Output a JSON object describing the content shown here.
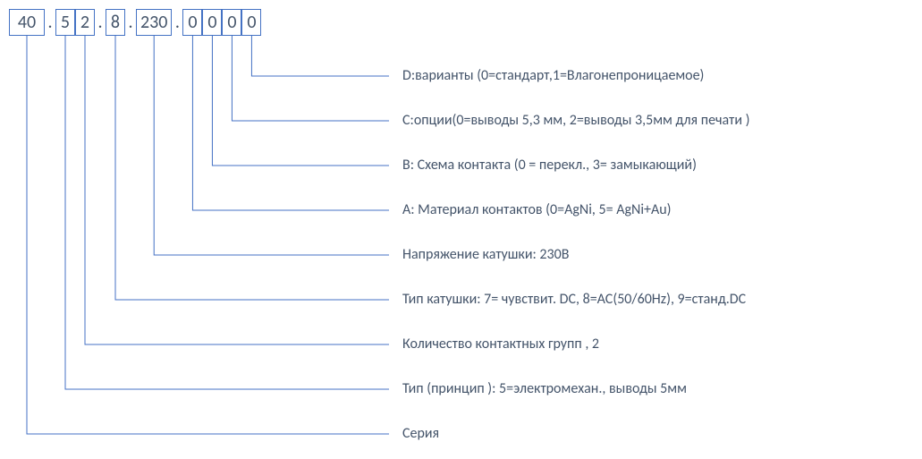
{
  "segments": [
    {
      "text": "40",
      "wide": true
    },
    {
      "dot": true
    },
    {
      "text": "5"
    },
    {
      "text": "2"
    },
    {
      "dot": true
    },
    {
      "text": "8"
    },
    {
      "dot": true
    },
    {
      "text": "230",
      "wide": true
    },
    {
      "dot": true
    },
    {
      "text": "0"
    },
    {
      "text": "0"
    },
    {
      "text": "0"
    },
    {
      "text": "0"
    }
  ],
  "lines": [
    {
      "sourceIdx": 12,
      "labelY": 85,
      "text": "D:варианты (0=стандарт,1=Влагонепроницаемое)"
    },
    {
      "sourceIdx": 11,
      "labelY": 135,
      "text": "C:опции(0=выводы 5,3 мм, 2=выводы 3,5мм для печати )"
    },
    {
      "sourceIdx": 10,
      "labelY": 185,
      "text": "B: Схема контакта (0 = перекл., 3= замыкающий)"
    },
    {
      "sourceIdx": 9,
      "labelY": 235,
      "text": "A: Материал контактов (0=AgNi, 5= AgNi+Au)"
    },
    {
      "sourceIdx": 7,
      "labelY": 285,
      "text": "Напряжение катушки: 230В"
    },
    {
      "sourceIdx": 5,
      "labelY": 335,
      "text": "Тип катушки: 7= чувствит. DC, 8=AC(50/60Hz), 9=станд.DC"
    },
    {
      "sourceIdx": 3,
      "labelY": 385,
      "text": "Количество контактных групп , 2"
    },
    {
      "sourceIdx": 2,
      "labelY": 435,
      "text": "Тип (принцип ): 5=электромехан., выводы 5мм"
    },
    {
      "sourceIdx": 0,
      "labelY": 485,
      "text": "Серия"
    }
  ],
  "layout": {
    "labelX": 450,
    "hGap": 15,
    "rowTop": 10,
    "rowLeft": 10,
    "digitHeight": 30,
    "colors": {
      "line": "#4472c4",
      "text": "#44546a",
      "background": "#ffffff"
    },
    "fontSize": 16
  }
}
